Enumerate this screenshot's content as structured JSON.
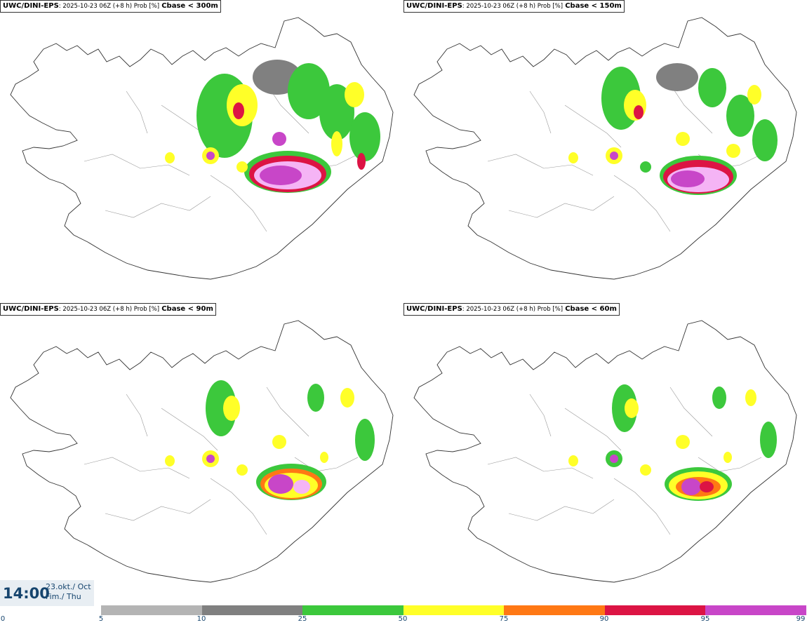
{
  "panels": [
    {
      "model": "UWC/DINI-EPS",
      "meta": ": 2025-10-23 06Z (+8 h) Prob [%]",
      "variable": "Cbase < 300m"
    },
    {
      "model": "UWC/DINI-EPS",
      "meta": ": 2025-10-23 06Z (+8 h) Prob [%]",
      "variable": "Cbase < 150m"
    },
    {
      "model": "UWC/DINI-EPS",
      "meta": ": 2025-10-23 06Z (+8 h) Prob [%]",
      "variable": "Cbase < 90m"
    },
    {
      "model": "UWC/DINI-EPS",
      "meta": ": 2025-10-23 06Z (+8 h) Prob [%]",
      "variable": "Cbase < 60m"
    }
  ],
  "valid_time": {
    "time": "14:00",
    "date_line1": "23.okt./ Oct",
    "date_line2": "Fim./ Thu"
  },
  "legend": {
    "ticks": [
      "0",
      "5",
      "10",
      "25",
      "50",
      "75",
      "90",
      "95",
      "99"
    ],
    "colors": [
      "#b4b4b4",
      "#808080",
      "#3cc83c",
      "#ffff28",
      "#ff7814",
      "#dc1444",
      "#c846c8",
      "#f5b4f5"
    ]
  }
}
